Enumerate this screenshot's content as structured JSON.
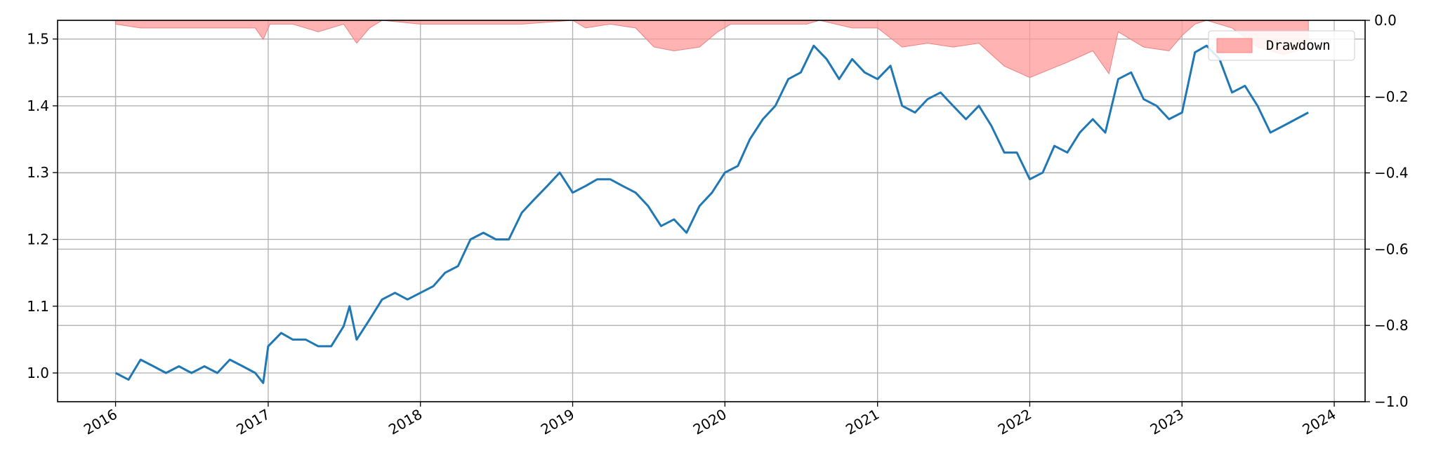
{
  "chart_data": {
    "type": "line",
    "title": "",
    "xlabel": "",
    "ylabel": "",
    "y_ticks": [
      "1.0",
      "1.1",
      "1.2",
      "1.3",
      "1.4",
      "1.5"
    ],
    "y2_ticks": [
      "0.0",
      "−0.2",
      "−0.4",
      "−0.6",
      "−0.8",
      "−1.0"
    ],
    "x_ticks": [
      "2016",
      "2017",
      "2018",
      "2019",
      "2020",
      "2021",
      "2022",
      "2023",
      "2024"
    ],
    "xlim": [
      "2015-08-15",
      "2024-03-15"
    ],
    "ylim": [
      0.957,
      1.528
    ],
    "y2lim": [
      -1.0,
      0.0
    ],
    "grid": true,
    "legend_placement": "top-right",
    "colors": {
      "nav": "#1f77b4",
      "drawdown": "#ff9999",
      "grid": "#b0b0b0"
    },
    "series": [
      {
        "kind": "line",
        "axis": "left",
        "x": [
          "2016-01-01",
          "2016-02-01",
          "2016-03-01",
          "2016-04-01",
          "2016-05-01",
          "2016-06-01",
          "2016-07-01",
          "2016-08-01",
          "2016-09-01",
          "2016-10-01",
          "2016-11-01",
          "2016-12-01",
          "2016-12-20",
          "2017-01-01",
          "2017-02-01",
          "2017-03-01",
          "2017-04-01",
          "2017-05-01",
          "2017-06-01",
          "2017-07-01",
          "2017-07-15",
          "2017-08-01",
          "2017-09-01",
          "2017-10-01",
          "2017-11-01",
          "2017-12-01",
          "2018-01-01",
          "2018-02-01",
          "2018-03-01",
          "2018-04-01",
          "2018-05-01",
          "2018-06-01",
          "2018-07-01",
          "2018-08-01",
          "2018-09-01",
          "2018-10-01",
          "2018-11-01",
          "2018-12-01",
          "2019-01-01",
          "2019-02-01",
          "2019-03-01",
          "2019-04-01",
          "2019-05-01",
          "2019-06-01",
          "2019-07-01",
          "2019-08-01",
          "2019-09-01",
          "2019-10-01",
          "2019-11-01",
          "2019-12-01",
          "2020-01-01",
          "2020-02-01",
          "2020-03-01",
          "2020-04-01",
          "2020-05-01",
          "2020-06-01",
          "2020-07-01",
          "2020-08-01",
          "2020-09-01",
          "2020-10-01",
          "2020-11-01",
          "2020-12-01",
          "2021-01-01",
          "2021-02-01",
          "2021-03-01",
          "2021-04-01",
          "2021-05-01",
          "2021-06-01",
          "2021-07-01",
          "2021-08-01",
          "2021-09-01",
          "2021-10-01",
          "2021-11-01",
          "2021-12-01",
          "2022-01-01",
          "2022-02-01",
          "2022-03-01",
          "2022-04-01",
          "2022-05-01",
          "2022-06-01",
          "2022-07-01",
          "2022-08-01",
          "2022-09-01",
          "2022-10-01",
          "2022-11-01",
          "2022-12-01",
          "2023-01-01",
          "2023-02-01",
          "2023-03-01",
          "2023-04-01",
          "2023-05-01",
          "2023-06-01",
          "2023-07-01",
          "2023-08-01",
          "2023-09-01",
          "2023-10-01",
          "2023-10-31"
        ],
        "values": [
          1.0,
          0.99,
          1.02,
          1.01,
          1.0,
          1.01,
          1.0,
          1.01,
          1.0,
          1.02,
          1.01,
          1.0,
          0.985,
          1.04,
          1.06,
          1.05,
          1.05,
          1.04,
          1.04,
          1.07,
          1.1,
          1.05,
          1.08,
          1.11,
          1.12,
          1.11,
          1.12,
          1.13,
          1.15,
          1.16,
          1.2,
          1.21,
          1.2,
          1.2,
          1.24,
          1.26,
          1.28,
          1.3,
          1.27,
          1.28,
          1.29,
          1.29,
          1.28,
          1.27,
          1.25,
          1.22,
          1.23,
          1.21,
          1.25,
          1.27,
          1.3,
          1.31,
          1.35,
          1.38,
          1.4,
          1.44,
          1.45,
          1.49,
          1.47,
          1.44,
          1.47,
          1.45,
          1.44,
          1.46,
          1.4,
          1.39,
          1.41,
          1.42,
          1.4,
          1.38,
          1.4,
          1.37,
          1.33,
          1.33,
          1.29,
          1.3,
          1.34,
          1.33,
          1.36,
          1.38,
          1.36,
          1.44,
          1.45,
          1.41,
          1.4,
          1.38,
          1.39,
          1.48,
          1.49,
          1.47,
          1.42,
          1.43,
          1.4,
          1.36,
          1.37,
          1.38,
          1.39
        ]
      },
      {
        "kind": "area",
        "axis": "right",
        "name": "Drawdown",
        "x": [
          "2016-01-01",
          "2016-03-01",
          "2016-05-01",
          "2016-08-01",
          "2016-10-01",
          "2016-12-01",
          "2016-12-20",
          "2017-01-05",
          "2017-03-01",
          "2017-05-01",
          "2017-07-01",
          "2017-08-01",
          "2017-09-01",
          "2017-10-01",
          "2018-01-01",
          "2018-06-01",
          "2018-09-01",
          "2019-01-01",
          "2019-02-01",
          "2019-04-01",
          "2019-06-01",
          "2019-07-15",
          "2019-09-01",
          "2019-11-01",
          "2019-12-15",
          "2020-01-15",
          "2020-04-01",
          "2020-07-15",
          "2020-08-15",
          "2020-11-01",
          "2021-01-01",
          "2021-03-01",
          "2021-05-01",
          "2021-07-01",
          "2021-09-01",
          "2021-11-01",
          "2022-01-01",
          "2022-02-15",
          "2022-04-01",
          "2022-06-01",
          "2022-07-10",
          "2022-08-01",
          "2022-10-01",
          "2022-12-01",
          "2023-01-01",
          "2023-02-01",
          "2023-03-01",
          "2023-05-01",
          "2023-07-01",
          "2023-09-01",
          "2023-10-31"
        ],
        "values": [
          -0.01,
          -0.02,
          -0.02,
          -0.02,
          -0.02,
          -0.02,
          -0.05,
          -0.01,
          -0.01,
          -0.03,
          -0.01,
          -0.06,
          -0.02,
          0.0,
          -0.01,
          -0.01,
          -0.01,
          0.0,
          -0.02,
          -0.01,
          -0.02,
          -0.07,
          -0.08,
          -0.07,
          -0.03,
          -0.01,
          -0.01,
          -0.01,
          0.0,
          -0.02,
          -0.02,
          -0.07,
          -0.06,
          -0.07,
          -0.06,
          -0.12,
          -0.15,
          -0.13,
          -0.11,
          -0.08,
          -0.14,
          -0.03,
          -0.07,
          -0.08,
          -0.04,
          -0.01,
          0.0,
          -0.02,
          -0.07,
          -0.09,
          -0.07
        ]
      }
    ]
  }
}
